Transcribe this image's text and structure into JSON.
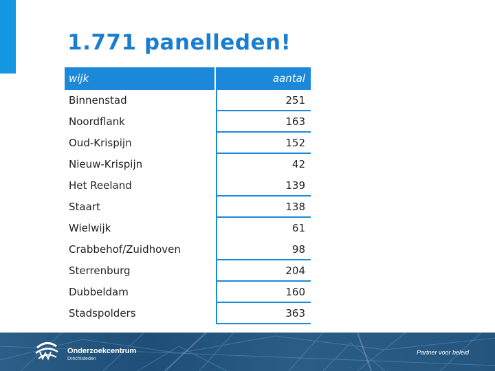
{
  "slide": {
    "title": "1.771 panelleden!",
    "accent_color": "#1596e0",
    "header_color": "#1b88d9"
  },
  "table": {
    "headers": [
      "wijk",
      "aantal"
    ],
    "rows": [
      {
        "wijk": "Binnenstad",
        "aantal": "251"
      },
      {
        "wijk": "Noordflank",
        "aantal": "163"
      },
      {
        "wijk": "Oud-Krispijn",
        "aantal": "152"
      },
      {
        "wijk": "Nieuw-Krispijn",
        "aantal": "42"
      },
      {
        "wijk": "Het Reeland",
        "aantal": "139"
      },
      {
        "wijk": "Staart",
        "aantal": "138"
      },
      {
        "wijk": "Wielwijk",
        "aantal": "61"
      },
      {
        "wijk": "Crabbehof/Zuidhoven",
        "aantal": "98"
      },
      {
        "wijk": "Sterrenburg",
        "aantal": "204"
      },
      {
        "wijk": "Dubbeldam",
        "aantal": "160"
      },
      {
        "wijk": "Stadspolders",
        "aantal": "363"
      }
    ]
  },
  "footer": {
    "logo_name": "Onderzoekcentrum",
    "logo_sub": "Drechtsteden",
    "tagline": "Partner voor beleid",
    "logo_icon": "onderzoekcentrum-logo-icon"
  }
}
